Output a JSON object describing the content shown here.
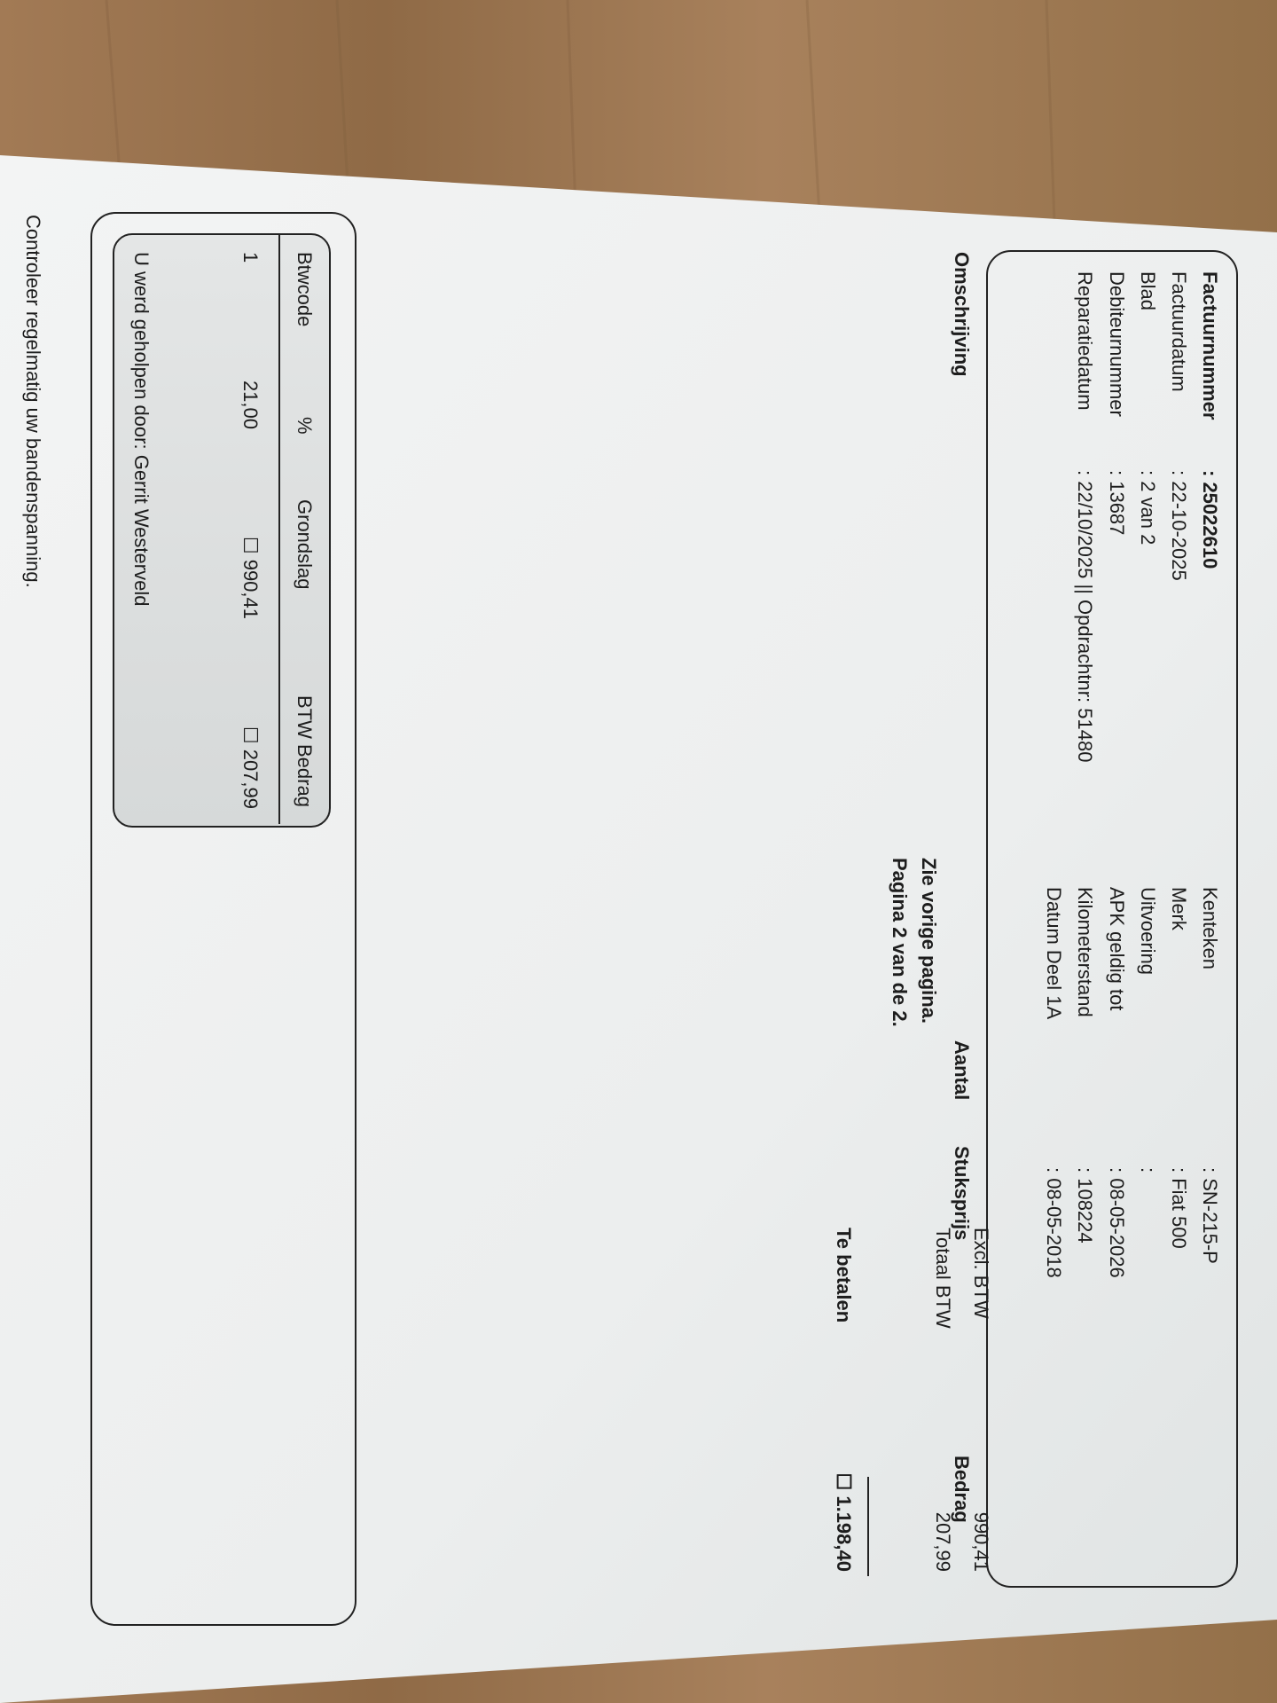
{
  "header": {
    "left": [
      {
        "label": "Factuurnummer",
        "value": ": 25022610",
        "bold": true
      },
      {
        "label": "Factuurdatum",
        "value": ": 22-10-2025"
      },
      {
        "label": "Blad",
        "value": ": 2 van 2"
      },
      {
        "label": "Debiteurnummer",
        "value": ": 13687"
      },
      {
        "label": "Reparatiedatum",
        "value": ": 22/10/2025 || Opdrachtnr: 51480"
      }
    ],
    "right": [
      {
        "label": "Kenteken",
        "value": ": SN-215-P"
      },
      {
        "label": "Merk",
        "value": ": Fiat 500"
      },
      {
        "label": "Uitvoering",
        "value": ":"
      },
      {
        "label": "APK geldig tot",
        "value": ": 08-05-2026"
      },
      {
        "label": "Kilometerstand",
        "value": ": 108224"
      },
      {
        "label": "Datum Deel 1A",
        "value": ": 08-05-2018"
      }
    ]
  },
  "columns": {
    "description": "Omschrijving",
    "quantity": "Aantal",
    "unit_price": "Stuksprijs",
    "amount": "Bedrag"
  },
  "notes": {
    "previous": "Zie vorige pagina.",
    "page": "Pagina 2 van de 2."
  },
  "totals": {
    "excl_label": "Excl. BTW",
    "excl_value": "990,41",
    "vat_label": "Totaal BTW",
    "vat_value": "207,99",
    "pay_label": "Te betalen",
    "pay_value": "☐ 1.198,40"
  },
  "vat_table": {
    "headers": [
      "Btwcode",
      "%",
      "Grondslag",
      "BTW Bedrag"
    ],
    "row": [
      "1",
      "21,00",
      "☐ 990,41",
      "☐ 207,99"
    ]
  },
  "helped_by": "U werd geholpen door: Gerrit Westerveld",
  "footer": "Controleer regelmatig uw bandenspanning."
}
